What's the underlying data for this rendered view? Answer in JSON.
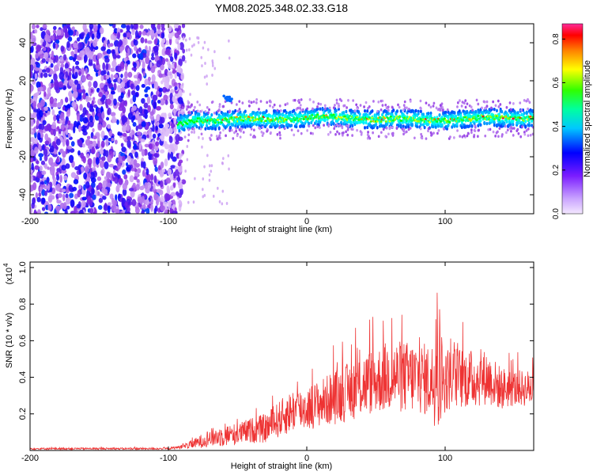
{
  "title": "YM08.2025.348.02.33.G18",
  "chart_data": [
    {
      "type": "heatmap",
      "xlabel": "Height of straight line (km)",
      "ylabel": "Frequency (Hz)",
      "xlim": [
        -200,
        164
      ],
      "ylim": [
        -50,
        50
      ],
      "xticks": [
        -200,
        -100,
        0,
        100
      ],
      "xticklabels": [
        "-200",
        "-100",
        "0",
        "100"
      ],
      "yticks": [
        -40,
        -20,
        0,
        20,
        40
      ],
      "yticklabels": [
        "-40",
        "-20",
        "0",
        "20",
        "40"
      ],
      "colorbar": {
        "label": "Normalized spectral amplitude",
        "range": [
          0,
          0.87
        ],
        "ticks": [
          0.0,
          0.2,
          0.4,
          0.6,
          0.8
        ],
        "ticklabels": [
          "0.0",
          "0.2",
          "0.4",
          "0.6",
          "0.8"
        ],
        "colormap": [
          "#f4e8ff",
          "#8a2be2",
          "#0000ff",
          "#00ffff",
          "#00ff00",
          "#ffff00",
          "#ff8000",
          "#ff0000",
          "#ff33aa"
        ]
      },
      "description_values": {
        "noise_region_x": [
          -200,
          -93
        ],
        "transition_x": [
          -100,
          -80
        ],
        "signal_band_center_hz": 0,
        "signal_band_halfwidth_hz": 4,
        "signal_x": [
          -93,
          164
        ]
      }
    },
    {
      "type": "line",
      "xlabel": "Height of straight line (km)",
      "ylabel": "SNR (10 * v/v)",
      "yscale_label": "(x10",
      "yscale_exp": "4",
      "xlim": [
        -200,
        164
      ],
      "ylim": [
        0,
        1.03
      ],
      "xticks": [
        -200,
        -100,
        0,
        100
      ],
      "xticklabels": [
        "-200",
        "-100",
        "0",
        "100"
      ],
      "yticks": [
        0.2,
        0.4,
        0.6,
        0.8,
        1.0
      ],
      "yticklabels": [
        "0.2",
        "0.4",
        "0.6",
        "0.8",
        "1.0"
      ],
      "color": "#ee3333",
      "series": [
        {
          "name": "SNR",
          "x": [
            -200,
            -180,
            -160,
            -140,
            -120,
            -100,
            -90,
            -80,
            -70,
            -60,
            -50,
            -40,
            -30,
            -20,
            -10,
            0,
            10,
            20,
            30,
            40,
            50,
            60,
            70,
            80,
            90,
            95,
            100,
            110,
            120,
            130,
            140,
            150,
            164
          ],
          "y": [
            0.01,
            0.01,
            0.01,
            0.01,
            0.01,
            0.01,
            0.02,
            0.04,
            0.07,
            0.08,
            0.09,
            0.11,
            0.12,
            0.17,
            0.22,
            0.23,
            0.26,
            0.29,
            0.32,
            0.36,
            0.38,
            0.41,
            0.4,
            0.4,
            0.38,
            0.4,
            0.39,
            0.4,
            0.39,
            0.4,
            0.34,
            0.34,
            0.34
          ],
          "spread": [
            0.005,
            0.005,
            0.005,
            0.005,
            0.005,
            0.005,
            0.01,
            0.03,
            0.05,
            0.06,
            0.06,
            0.07,
            0.08,
            0.1,
            0.12,
            0.12,
            0.13,
            0.15,
            0.16,
            0.18,
            0.18,
            0.2,
            0.2,
            0.2,
            0.2,
            0.32,
            0.18,
            0.17,
            0.16,
            0.15,
            0.12,
            0.1,
            0.1
          ]
        }
      ]
    }
  ]
}
